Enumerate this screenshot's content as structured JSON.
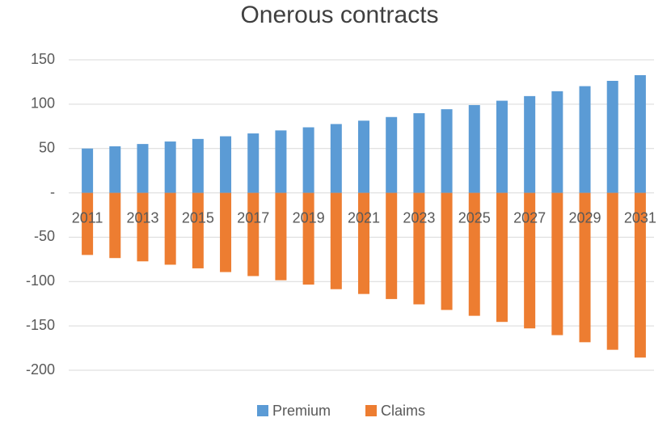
{
  "chart_data": {
    "type": "bar",
    "title": "Onerous contracts",
    "categories": [
      "2011",
      null,
      "2013",
      null,
      "2015",
      null,
      "2017",
      null,
      "2019",
      null,
      "2021",
      null,
      "2023",
      null,
      "2025",
      null,
      "2027",
      null,
      "2029",
      null,
      "2031"
    ],
    "series": [
      {
        "name": "Premium",
        "color": "#5b9bd5",
        "values": [
          50,
          52.5,
          55.1,
          57.9,
          60.8,
          63.8,
          67.0,
          70.4,
          73.9,
          77.6,
          81.4,
          85.5,
          89.8,
          94.3,
          99.0,
          103.9,
          109.1,
          114.6,
          120.3,
          126.3,
          132.7
        ]
      },
      {
        "name": "Claims",
        "color": "#ed7d31",
        "values": [
          -70,
          -73.5,
          -77.2,
          -81,
          -85.1,
          -89.3,
          -93.8,
          -98.5,
          -103.4,
          -108.6,
          -114,
          -119.7,
          -125.7,
          -132,
          -138.6,
          -145.5,
          -152.8,
          -160.4,
          -168.4,
          -176.9,
          -185.7
        ]
      }
    ],
    "ylim": [
      -200,
      150
    ],
    "yticks": [
      -200,
      -150,
      -100,
      -50,
      {
        "value": 0,
        "label": "-"
      },
      50,
      100,
      150
    ],
    "grid": true,
    "legend": "bottom"
  }
}
